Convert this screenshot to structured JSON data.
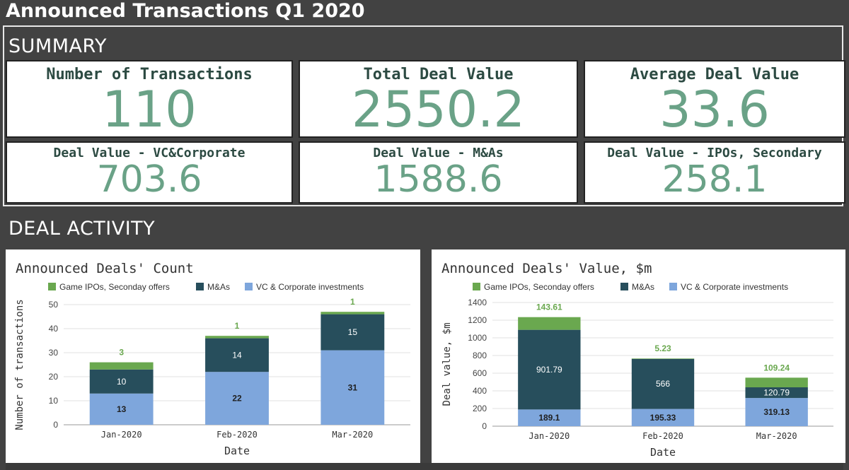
{
  "header": {
    "title": "Announced Transactions Q1 2020"
  },
  "summary": {
    "label": "SUMMARY",
    "cards": [
      {
        "label": "Number of Transactions",
        "value": "110"
      },
      {
        "label": "Total Deal Value",
        "value": "2550.2"
      },
      {
        "label": "Average Deal Value",
        "value": "33.6"
      },
      {
        "label": "Deal Value - VC&Corporate",
        "value": "703.6"
      },
      {
        "label": "Deal Value - M&As",
        "value": "1588.6"
      },
      {
        "label": "Deal Value - IPOs, Secondary",
        "value": "258.1"
      }
    ]
  },
  "activity": {
    "label": "DEAL ACTIVITY"
  },
  "colors": {
    "ipo": "#6aa84f",
    "mna": "#274e5c",
    "vc": "#7ea6dc",
    "value_text": "#6aa287"
  },
  "chart_data": [
    {
      "type": "bar",
      "stacked": true,
      "title": "Announced Deals' Count",
      "xlabel": "Date",
      "ylabel": "Number of transactions",
      "ylim": [
        0,
        50
      ],
      "yticks": [
        0,
        10,
        20,
        30,
        40,
        50
      ],
      "categories": [
        "Jan-2020",
        "Feb-2020",
        "Mar-2020"
      ],
      "series": [
        {
          "name": "VC & Corporate investments",
          "values": [
            13,
            22,
            31
          ]
        },
        {
          "name": "M&As",
          "values": [
            10,
            14,
            15
          ]
        },
        {
          "name": "Game IPOs, Seconday offers",
          "values": [
            3,
            1,
            1
          ]
        }
      ],
      "legend": "top"
    },
    {
      "type": "bar",
      "stacked": true,
      "title": "Announced Deals' Value, $m",
      "xlabel": "Date",
      "ylabel": "Deal value, $m",
      "ylim": [
        0,
        1400
      ],
      "yticks": [
        0,
        200,
        400,
        600,
        800,
        1000,
        1200,
        1400
      ],
      "categories": [
        "Jan-2020",
        "Feb-2020",
        "Mar-2020"
      ],
      "series": [
        {
          "name": "VC & Corporate investments",
          "values": [
            189.1,
            195.33,
            319.13
          ]
        },
        {
          "name": "M&As",
          "values": [
            901.79,
            566,
            120.79
          ]
        },
        {
          "name": "Game IPOs, Seconday offers",
          "values": [
            143.61,
            5.23,
            109.24
          ]
        }
      ],
      "legend": "top"
    }
  ]
}
